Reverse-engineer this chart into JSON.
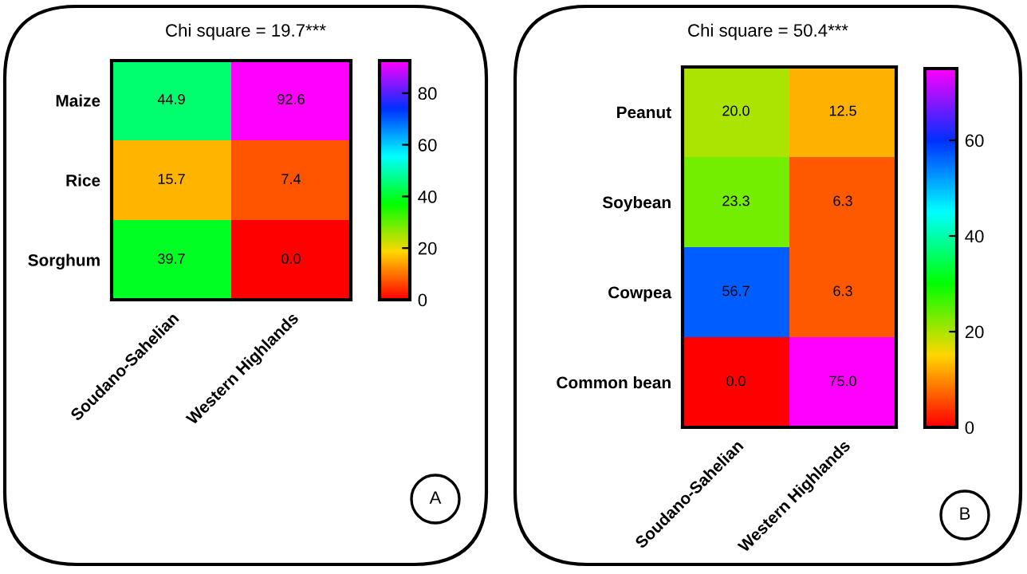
{
  "chart_data": [
    {
      "type": "heatmap",
      "title": "Chi square = 19.7***",
      "categories": [
        "Soudano-Sahelian",
        "Western Highlands"
      ],
      "y_categories": [
        "Maize",
        "Rice",
        "Sorghum"
      ],
      "cells": [
        [
          44.9,
          92.6
        ],
        [
          15.7,
          7.4
        ],
        [
          39.7,
          0.0
        ]
      ],
      "cell_labels": [
        [
          "44.9",
          "92.6"
        ],
        [
          "15.7",
          "7.4"
        ],
        [
          "39.7",
          "0.0"
        ]
      ],
      "clim": [
        0,
        92.6
      ],
      "cticks": [
        0,
        20,
        40,
        60,
        80
      ],
      "data_labels": true,
      "annotations": [
        "A"
      ]
    },
    {
      "type": "heatmap",
      "title": "Chi square = 50.4***",
      "categories": [
        "Soudano-Sahelian",
        "Western Highlands"
      ],
      "y_categories": [
        "Peanut",
        "Soybean",
        "Cowpea",
        "Common bean"
      ],
      "cells": [
        [
          20.0,
          12.5
        ],
        [
          23.3,
          6.3
        ],
        [
          56.7,
          6.3
        ],
        [
          0.0,
          75.0
        ]
      ],
      "cell_labels": [
        [
          "20.0",
          "12.5"
        ],
        [
          "23.3",
          "6.3"
        ],
        [
          "56.7",
          "6.3"
        ],
        [
          "0.0",
          "75.0"
        ]
      ],
      "clim": [
        0,
        75
      ],
      "cticks": [
        0,
        20,
        40,
        60
      ],
      "data_labels": true,
      "annotations": [
        "B"
      ]
    }
  ]
}
